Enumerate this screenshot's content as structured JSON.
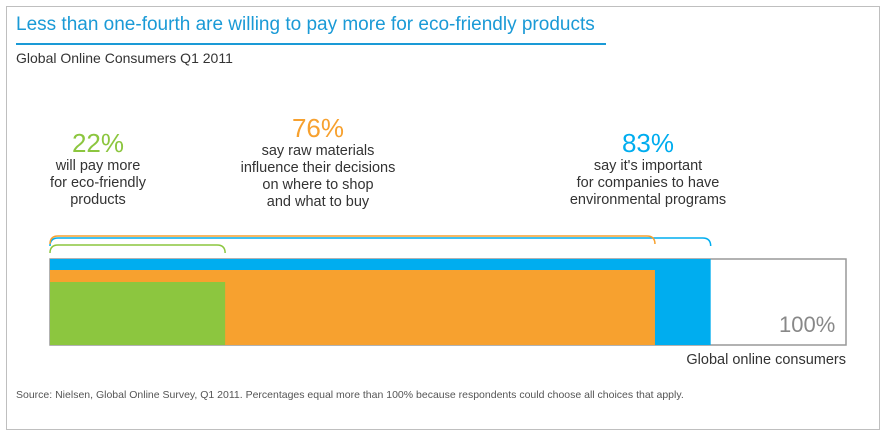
{
  "title": "Less than one-fourth are willing to pay more for eco-friendly products",
  "subtitle": "Global Online Consumers Q1 2011",
  "source": "Source: Nielsen, Global Online Survey, Q1 2011. Percentages equal more than 100% because respondents could choose all choices that apply.",
  "colors": {
    "accent": "#1a9ad6",
    "green": "#8cc63f",
    "orange": "#f7a12f",
    "blue": "#00adef"
  },
  "chart_data": {
    "type": "bar",
    "orientation": "horizontal-overlapping",
    "total_label": "100%",
    "xlabel": "Global online consumers",
    "xlim": [
      0,
      100
    ],
    "series": [
      {
        "value": 83,
        "label": "83%",
        "description": "say it's important\nfor companies to have\nenvironmental programs",
        "color": "#00adef"
      },
      {
        "value": 76,
        "label": "76%",
        "description": "say raw materials\ninfluence their decisions\non where to shop\nand what to buy",
        "color": "#f7a12f"
      },
      {
        "value": 22,
        "label": "22%",
        "description": "will pay more\nfor eco-friendly\nproducts",
        "color": "#8cc63f"
      }
    ]
  }
}
